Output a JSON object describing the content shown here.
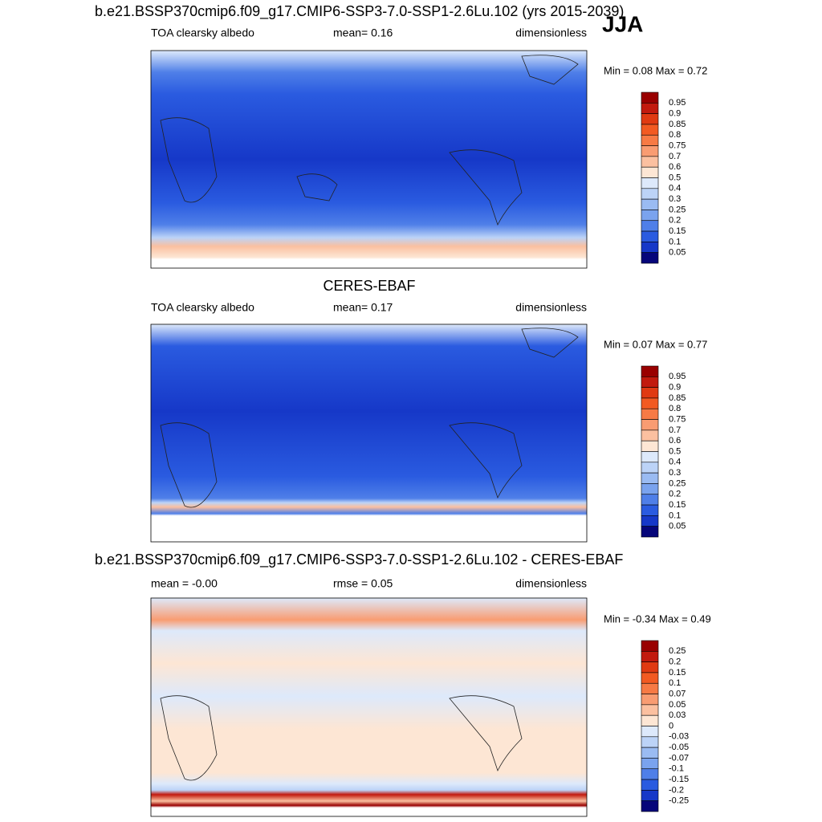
{
  "season": "JJA",
  "panels": [
    {
      "title": "b.e21.BSSP370cmip6.f09_g17.CMIP6-SSP3-7.0-SSP1-2.6Lu.102 (yrs 2015-2039)",
      "left": "TOA clearsky albedo",
      "center": "mean=   0.16",
      "right": "dimensionless",
      "minmax": "Min =   0.08 Max =   0.72",
      "colorbar": {
        "labels": [
          "0.95",
          "0.9",
          "0.85",
          "0.8",
          "0.75",
          "0.7",
          "0.6",
          "0.5",
          "0.4",
          "0.3",
          "0.25",
          "0.2",
          "0.15",
          "0.1",
          "0.05"
        ],
        "colors": [
          "#990000",
          "#c21a0e",
          "#e03a12",
          "#f25a22",
          "#f77a45",
          "#f99c72",
          "#fbc0a0",
          "#fde6d4",
          "#dde9fb",
          "#bcd3f7",
          "#9abbf2",
          "#7aa3ee",
          "#4f7fe8",
          "#2a5be0",
          "#1638c8",
          "#06067a"
        ]
      }
    },
    {
      "title": "CERES-EBAF",
      "left": "TOA clearsky albedo",
      "center": "mean=   0.17",
      "right": "dimensionless",
      "minmax": "Min =   0.07 Max =   0.77",
      "colorbar": {
        "labels": [
          "0.95",
          "0.9",
          "0.85",
          "0.8",
          "0.75",
          "0.7",
          "0.6",
          "0.5",
          "0.4",
          "0.3",
          "0.25",
          "0.2",
          "0.15",
          "0.1",
          "0.05"
        ],
        "colors": [
          "#990000",
          "#c21a0e",
          "#e03a12",
          "#f25a22",
          "#f77a45",
          "#f99c72",
          "#fbc0a0",
          "#fde6d4",
          "#dde9fb",
          "#bcd3f7",
          "#9abbf2",
          "#7aa3ee",
          "#4f7fe8",
          "#2a5be0",
          "#1638c8",
          "#06067a"
        ]
      }
    },
    {
      "title": "b.e21.BSSP370cmip6.f09_g17.CMIP6-SSP3-7.0-SSP1-2.6Lu.102 - CERES-EBAF",
      "left": "mean =  -0.00",
      "center": "rmse =   0.05",
      "right": "dimensionless",
      "minmax": "Min =  -0.34 Max =   0.49",
      "colorbar": {
        "labels": [
          "0.25",
          "0.2",
          "0.15",
          "0.1",
          "0.07",
          "0.05",
          "0.03",
          "0",
          "-0.03",
          "-0.05",
          "-0.07",
          "-0.1",
          "-0.15",
          "-0.2",
          "-0.25"
        ],
        "colors": [
          "#990000",
          "#c21a0e",
          "#e03a12",
          "#f25a22",
          "#f77a45",
          "#f99c72",
          "#fbc0a0",
          "#fde6d4",
          "#dde9fb",
          "#bcd3f7",
          "#9abbf2",
          "#7aa3ee",
          "#4f7fe8",
          "#2a5be0",
          "#1638c8",
          "#06067a"
        ]
      }
    }
  ]
}
